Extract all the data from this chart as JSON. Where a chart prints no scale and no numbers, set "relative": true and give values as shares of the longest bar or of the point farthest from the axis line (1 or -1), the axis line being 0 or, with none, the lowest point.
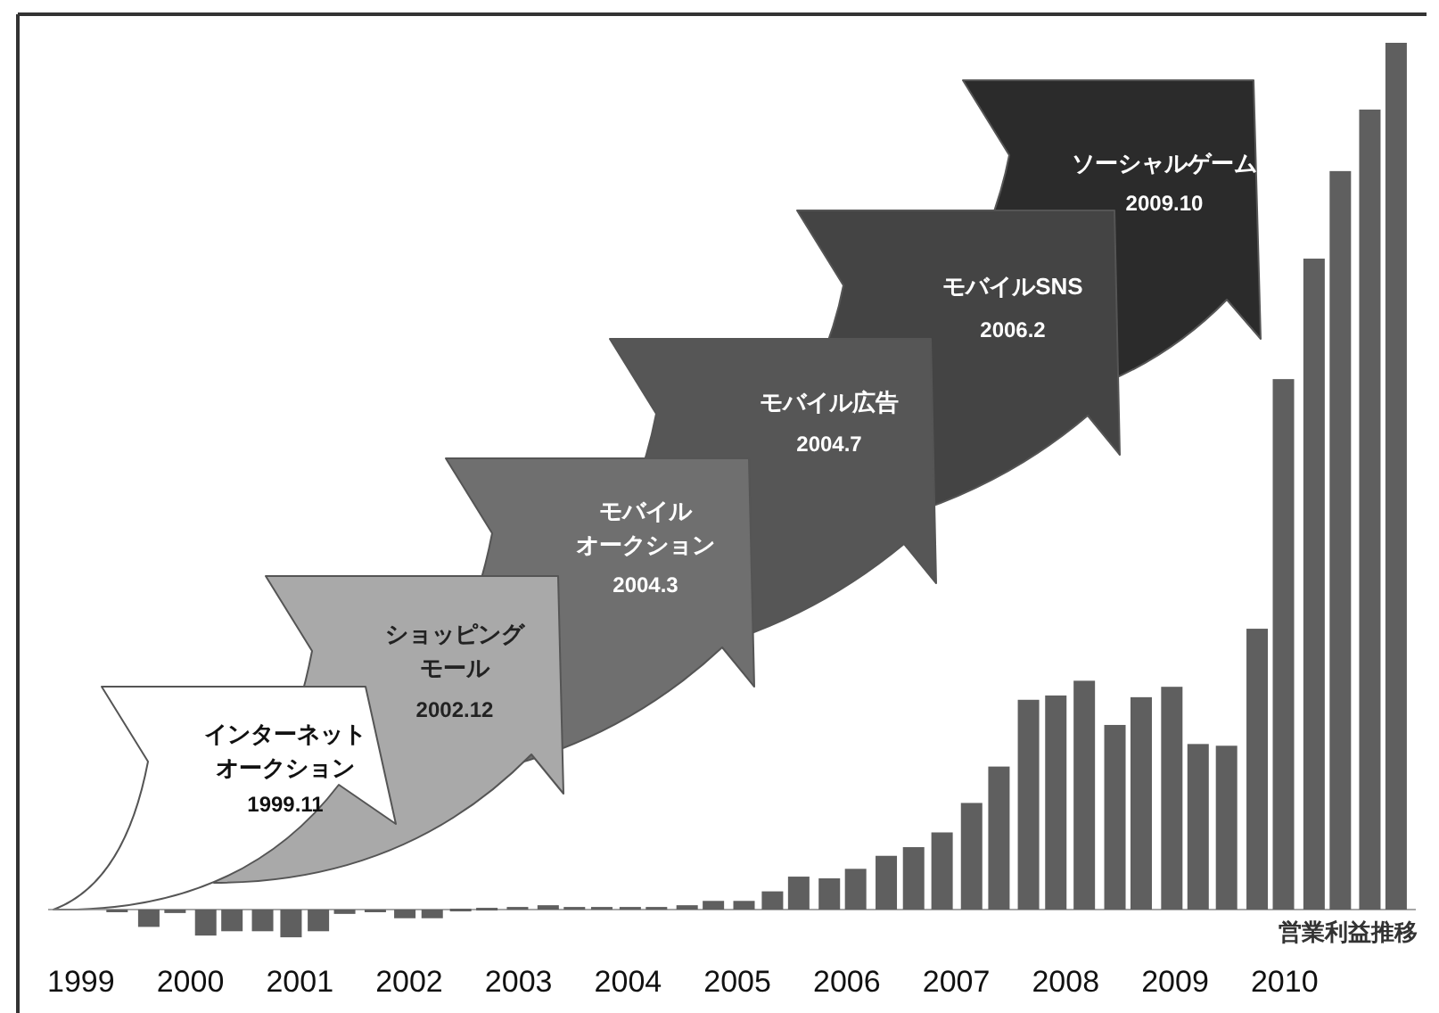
{
  "chart_data": {
    "type": "bar",
    "relative": true,
    "color": "#5f5f5f",
    "x": [
      1999.33,
      1999.62,
      1999.86,
      2000.14,
      2000.38,
      2000.66,
      2000.92,
      2001.17,
      2001.41,
      2001.69,
      2001.96,
      2002.21,
      2002.47,
      2002.71,
      2002.99,
      2003.27,
      2003.51,
      2003.76,
      2004.02,
      2004.26,
      2004.54,
      2004.78,
      2005.06,
      2005.32,
      2005.56,
      2005.84,
      2006.08,
      2006.36,
      2006.61,
      2006.87,
      2007.14,
      2007.39,
      2007.66,
      2007.91,
      2008.17,
      2008.45,
      2008.69,
      2008.97,
      2009.21,
      2009.47,
      2009.75,
      2009.99,
      2010.27,
      2010.51,
      2010.78,
      2011.02
    ],
    "values": [
      -0.002,
      -0.02,
      -0.004,
      -0.03,
      -0.025,
      -0.025,
      -0.032,
      -0.025,
      -0.005,
      -0.003,
      -0.01,
      -0.01,
      0.001,
      0.002,
      0.003,
      0.005,
      0.003,
      0.003,
      0.003,
      0.003,
      0.005,
      0.01,
      0.01,
      0.021,
      0.038,
      0.036,
      0.047,
      0.062,
      0.072,
      0.089,
      0.123,
      0.165,
      0.242,
      0.247,
      0.264,
      0.213,
      0.245,
      0.257,
      0.191,
      0.189,
      0.324,
      0.612,
      0.751,
      0.852,
      0.923,
      1
    ],
    "xlim": [
      1998.7,
      2011.2
    ],
    "xticks": [
      1999,
      2000,
      2001,
      2002,
      2003,
      2004,
      2005,
      2006,
      2007,
      2008,
      2009,
      2010
    ],
    "annotations": [
      "インターネットオークション",
      "1999.11",
      "ショッピングモール",
      "2002.12",
      "モバイルオークション",
      "2004.3",
      "モバイル広告",
      "2004.7",
      "モバイルSNS",
      "2006.2",
      "ソーシャルゲーム",
      "2009.10",
      "営業利益推移"
    ]
  }
}
